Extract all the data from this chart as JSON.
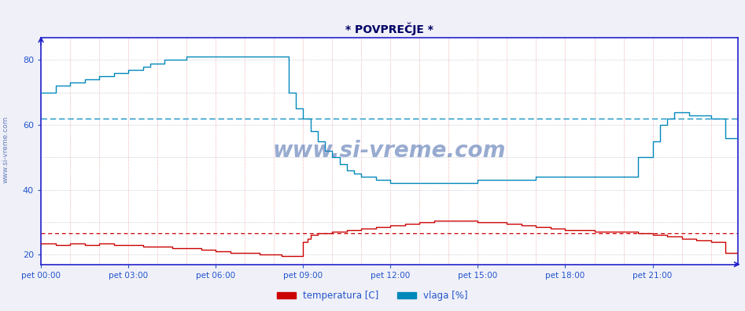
{
  "title": "* POVPREČJE *",
  "bg_color": "#f0f0f8",
  "plot_bg_color": "#ffffff",
  "ylim": [
    17,
    87
  ],
  "yticks": [
    20,
    40,
    60,
    80
  ],
  "xtick_labels": [
    "pet 00:00",
    "pet 03:00",
    "pet 06:00",
    "pet 09:00",
    "pet 12:00",
    "pet 15:00",
    "pet 18:00",
    "pet 21:00"
  ],
  "temp_color": "#cc0000",
  "hum_color": "#0088bb",
  "avg_temp": 26.5,
  "avg_hum": 62.0,
  "title_color": "#000066",
  "axis_color": "#2222cc",
  "tick_color": "#2255cc",
  "grid_color_v": "#ee9999",
  "grid_color_h": "#bbbbcc",
  "watermark": "www.si-vreme.com",
  "watermark_color": "#4466aa",
  "legend_temp": "temperatura [C]",
  "legend_hum": "vlaga [%]"
}
